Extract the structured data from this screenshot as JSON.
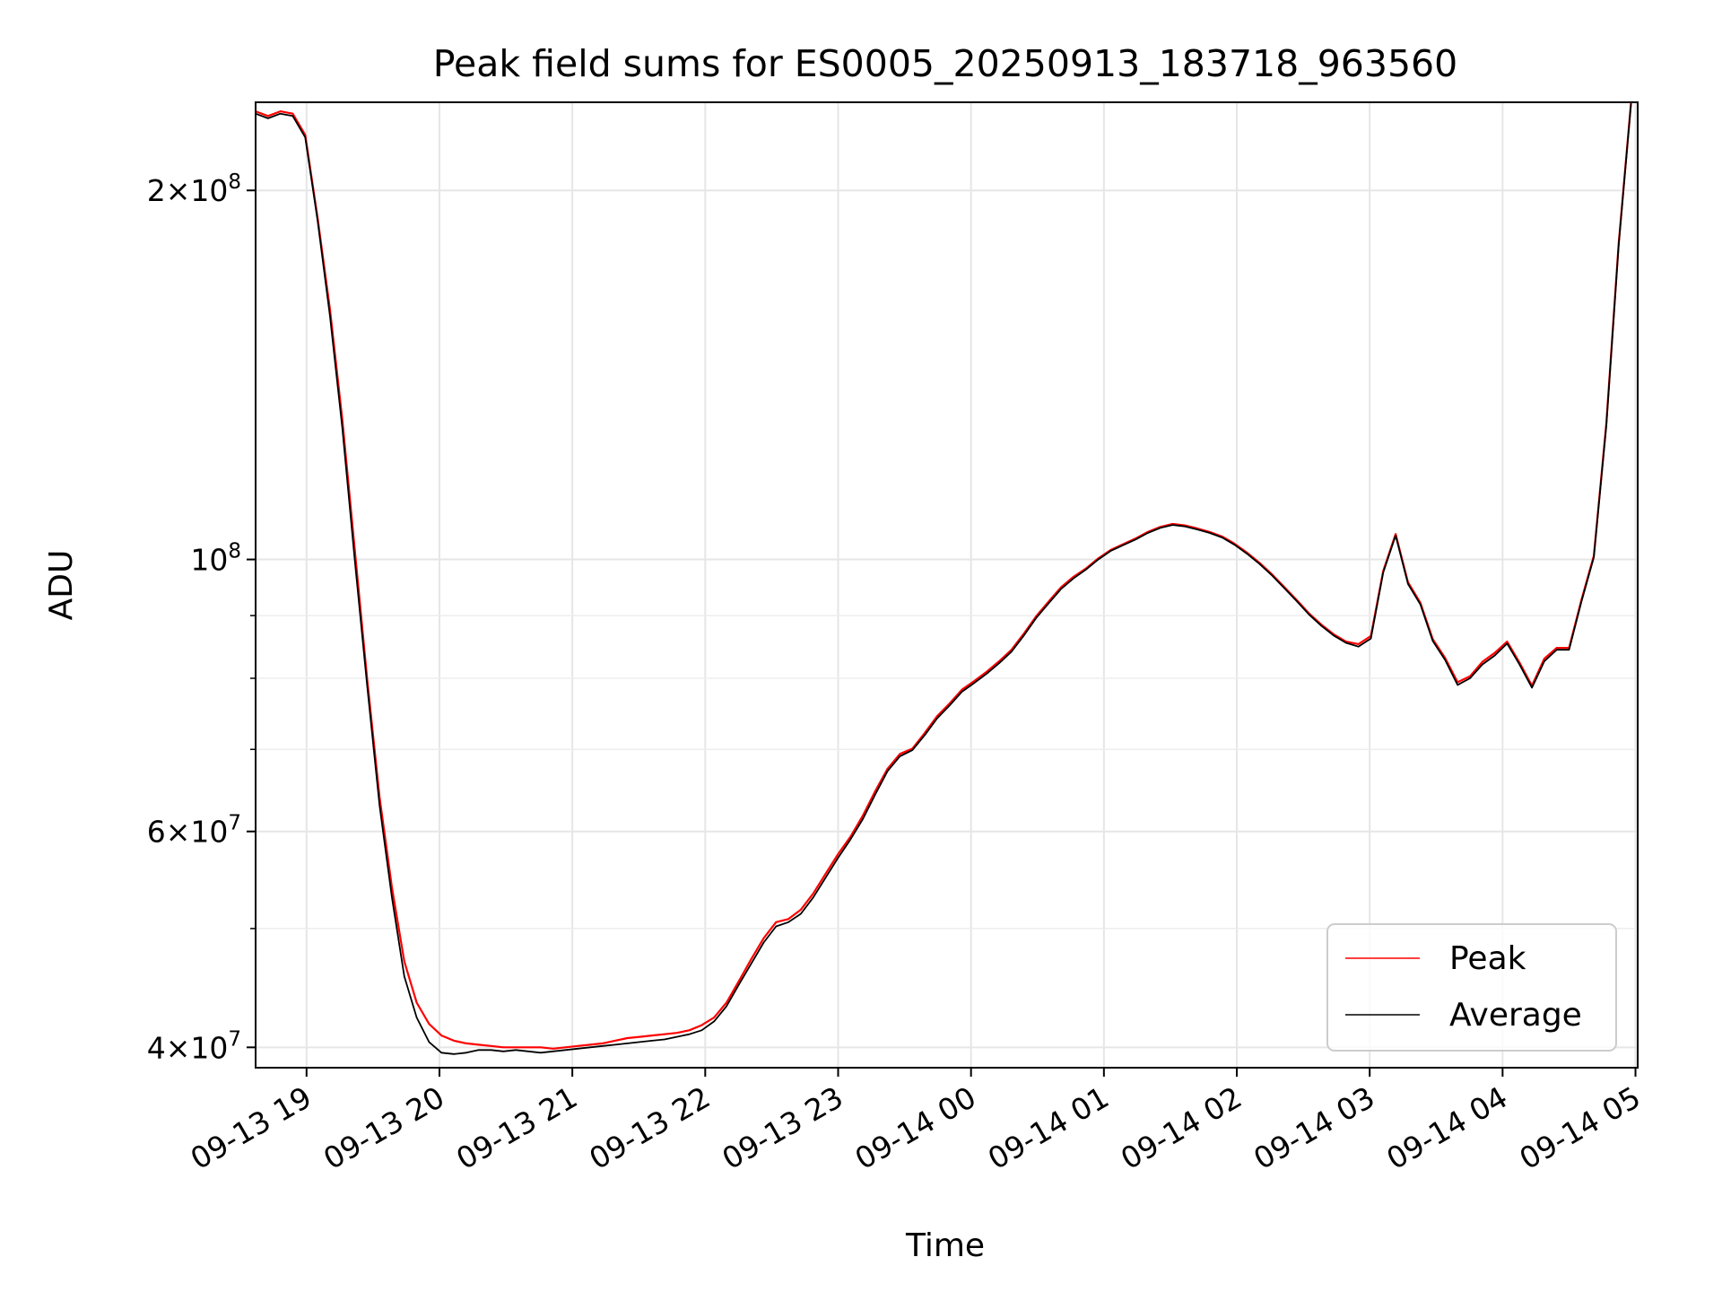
{
  "chart_data": {
    "type": "line",
    "title": "Peak field sums for ES0005_20250913_183718_963560",
    "xlabel": "Time",
    "ylabel": "ADU",
    "x_start": "2025-09-13 18:37",
    "x_end": "2025-09-14 04:58",
    "xlim": [
      "2025-09-13 18:37",
      "2025-09-14 05:01"
    ],
    "ylim": [
      38500000,
      236000000
    ],
    "yscale": "log",
    "grid": true,
    "legend_position": "lower-right",
    "x_ticks": [
      {
        "value": "2025-09-13 19:00",
        "label": "09-13 19"
      },
      {
        "value": "2025-09-13 20:00",
        "label": "09-13 20"
      },
      {
        "value": "2025-09-13 21:00",
        "label": "09-13 21"
      },
      {
        "value": "2025-09-13 22:00",
        "label": "09-13 22"
      },
      {
        "value": "2025-09-13 23:00",
        "label": "09-13 23"
      },
      {
        "value": "2025-09-14 00:00",
        "label": "09-14 00"
      },
      {
        "value": "2025-09-14 01:00",
        "label": "09-14 01"
      },
      {
        "value": "2025-09-14 02:00",
        "label": "09-14 02"
      },
      {
        "value": "2025-09-14 03:00",
        "label": "09-14 03"
      },
      {
        "value": "2025-09-14 04:00",
        "label": "09-14 04"
      },
      {
        "value": "2025-09-14 05:00",
        "label": "09-14 05"
      }
    ],
    "y_major_ticks": [
      {
        "value": 40000000,
        "mantissa": "4",
        "exp": "7"
      },
      {
        "value": 60000000,
        "mantissa": "6",
        "exp": "7"
      },
      {
        "value": 100000000,
        "mantissa": "",
        "exp": "8"
      },
      {
        "value": 200000000,
        "mantissa": "2",
        "exp": "8"
      }
    ],
    "y_minor_ticks": [
      50000000,
      70000000,
      80000000,
      90000000
    ],
    "series": [
      {
        "name": "Peak",
        "color": "#ff0000",
        "values": [
          232000000,
          230000000,
          232000000,
          231000000,
          222000000,
          190000000,
          160000000,
          130000000,
          102000000,
          80000000,
          64000000,
          54000000,
          47000000,
          43500000,
          41800000,
          40900000,
          40500000,
          40300000,
          40200000,
          40100000,
          40000000,
          40000000,
          40000000,
          40000000,
          39900000,
          40000000,
          40100000,
          40200000,
          40300000,
          40500000,
          40700000,
          40800000,
          40900000,
          41000000,
          41100000,
          41300000,
          41700000,
          42300000,
          43500000,
          45300000,
          47200000,
          49100000,
          50600000,
          50900000,
          51800000,
          53400000,
          55400000,
          57500000,
          59400000,
          61800000,
          64700000,
          67500000,
          69400000,
          70100000,
          72200000,
          74500000,
          76300000,
          78300000,
          79600000,
          81000000,
          82600000,
          84400000,
          87000000,
          89900000,
          92400000,
          94900000,
          96800000,
          98300000,
          100200000,
          101800000,
          102900000,
          104000000,
          105300000,
          106300000,
          106900000,
          106600000,
          106000000,
          105300000,
          104400000,
          103000000,
          101300000,
          99400000,
          97300000,
          95000000,
          92700000,
          90400000,
          88500000,
          86900000,
          85700000,
          85300000,
          86600000,
          97900000,
          104900000,
          95800000,
          92200000,
          86100000,
          83100000,
          79400000,
          80300000,
          82500000,
          83900000,
          85700000,
          82400000,
          78900000,
          83000000,
          84700000,
          84700000,
          92700000,
          100700000,
          129000000,
          181000000,
          236000000
        ]
      },
      {
        "name": "Average",
        "color": "#000000",
        "values": [
          231000000,
          229000000,
          231000000,
          230000000,
          221000000,
          189000000,
          158000000,
          128000000,
          100000000,
          79000000,
          63000000,
          53000000,
          45700000,
          42300000,
          40400000,
          39600000,
          39500000,
          39600000,
          39800000,
          39800000,
          39700000,
          39800000,
          39700000,
          39600000,
          39700000,
          39800000,
          39900000,
          40000000,
          40100000,
          40200000,
          40300000,
          40400000,
          40500000,
          40600000,
          40800000,
          41000000,
          41300000,
          42000000,
          43200000,
          45000000,
          46800000,
          48700000,
          50200000,
          50600000,
          51400000,
          53000000,
          55000000,
          57100000,
          59100000,
          61400000,
          64300000,
          67200000,
          69100000,
          69900000,
          71900000,
          74200000,
          76000000,
          78000000,
          79300000,
          80700000,
          82300000,
          84100000,
          86700000,
          89600000,
          92100000,
          94600000,
          96500000,
          98100000,
          100000000,
          101600000,
          102700000,
          103800000,
          105100000,
          106100000,
          106700000,
          106400000,
          105800000,
          105100000,
          104200000,
          102800000,
          101100000,
          99200000,
          97100000,
          94800000,
          92500000,
          90200000,
          88300000,
          86700000,
          85500000,
          84900000,
          86200000,
          97600000,
          104600000,
          95500000,
          91900000,
          85800000,
          82800000,
          79000000,
          80000000,
          82100000,
          83500000,
          85400000,
          82100000,
          78600000,
          82600000,
          84400000,
          84400000,
          92400000,
          100400000,
          128500000,
          180500000,
          235500000
        ]
      }
    ]
  }
}
